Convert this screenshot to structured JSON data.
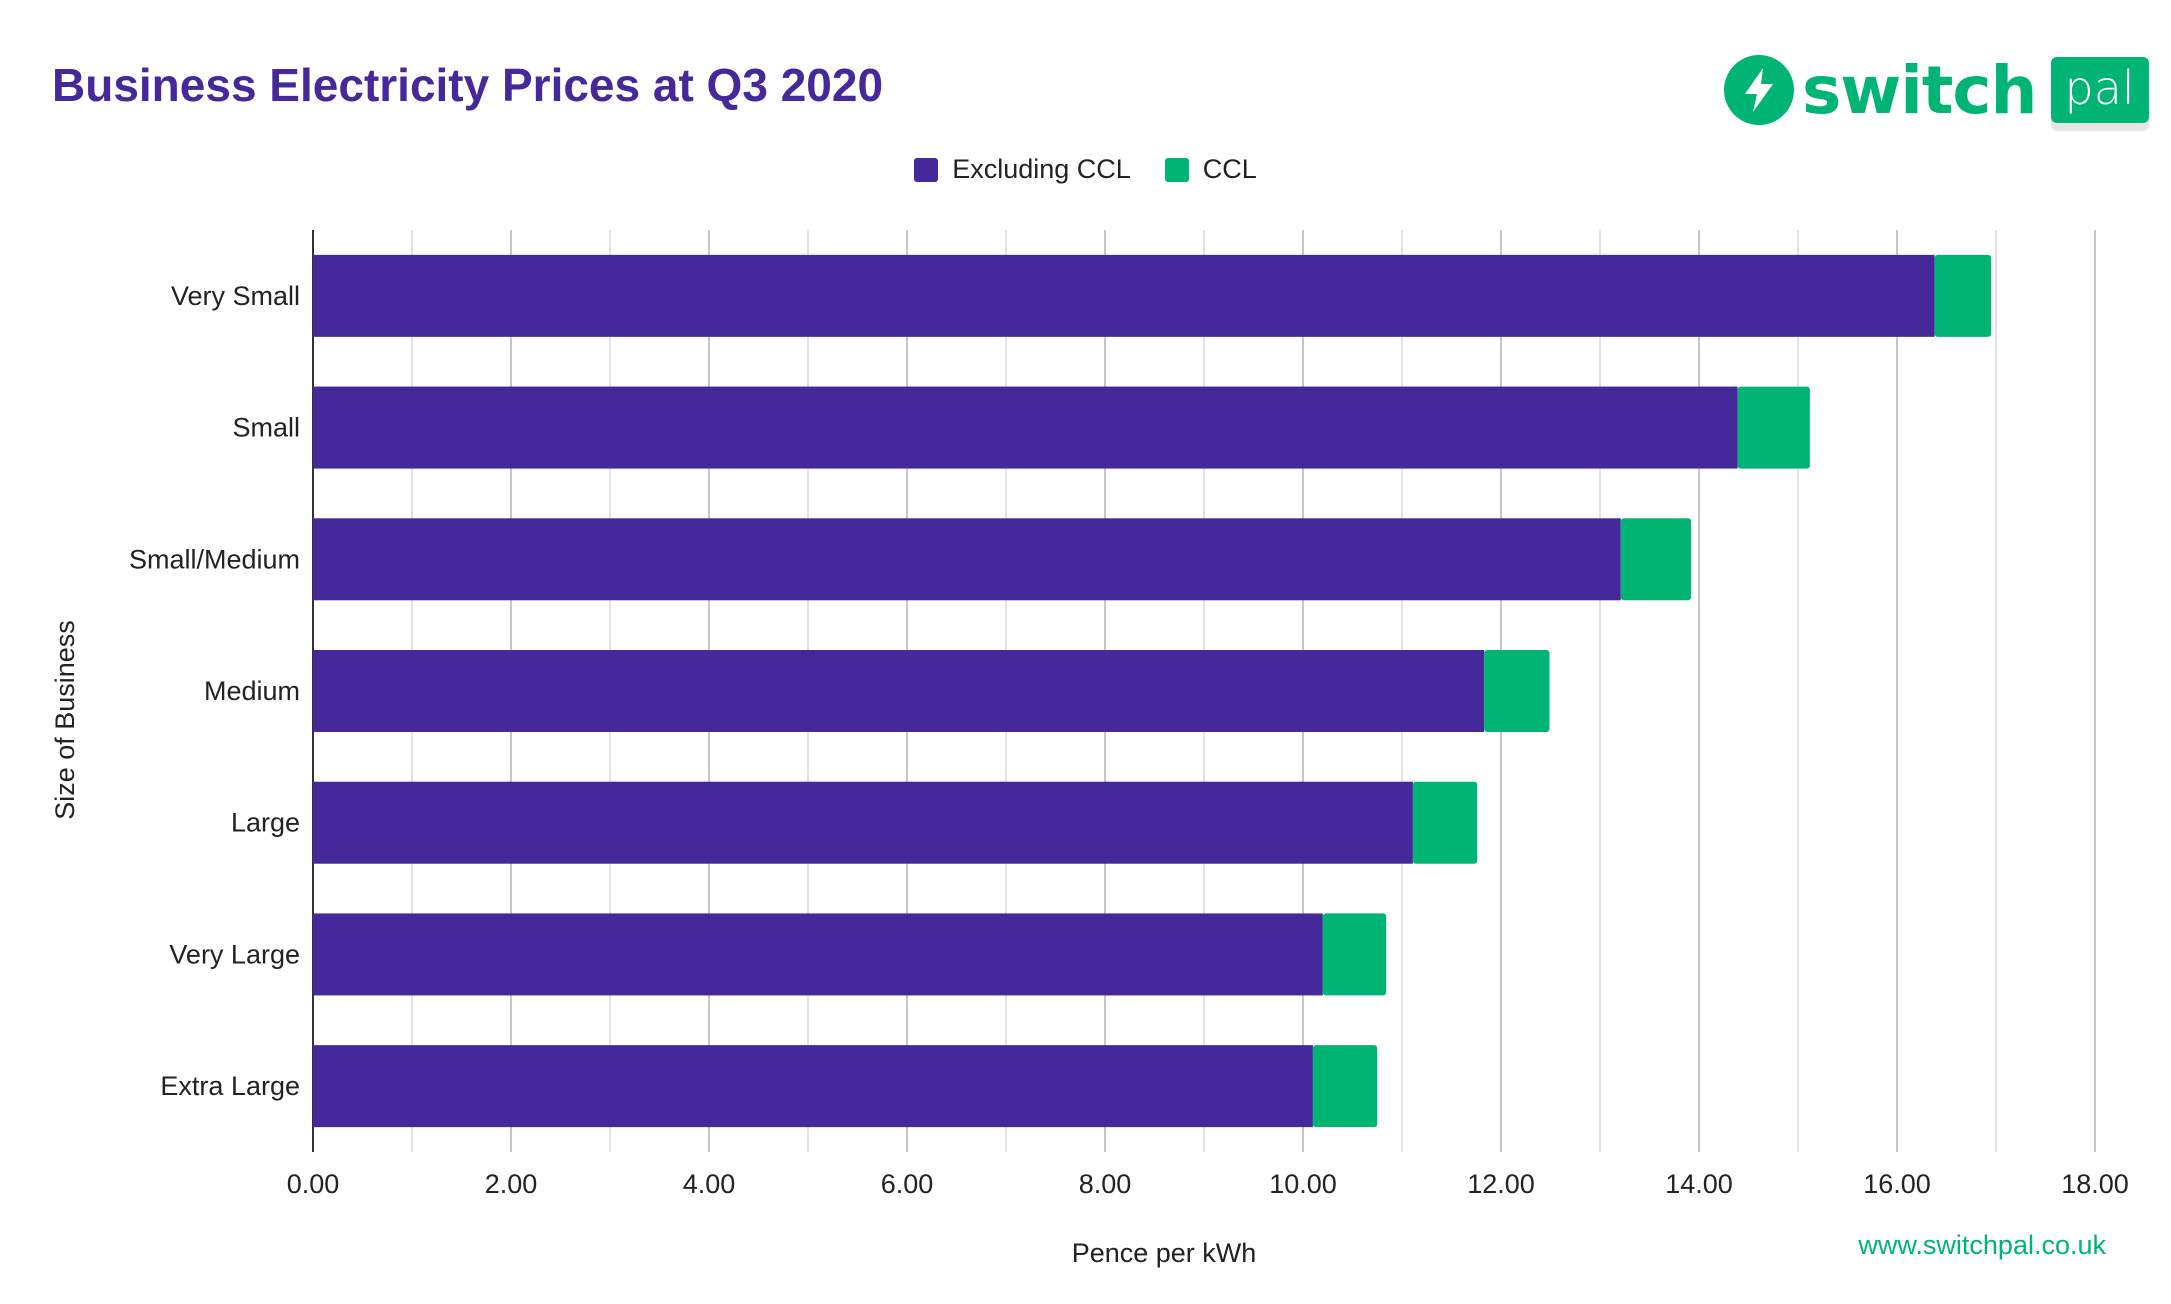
{
  "chart_data": {
    "type": "bar",
    "orientation": "horizontal",
    "stacked": true,
    "title": "Business Electricity Prices at Q3 2020",
    "xlabel": "Pence per kWh",
    "ylabel": "Size of Business",
    "xlim": [
      0,
      18
    ],
    "xticks": [
      "0.00",
      "2.00",
      "4.00",
      "6.00",
      "8.00",
      "10.00",
      "12.00",
      "14.00",
      "16.00",
      "18.00"
    ],
    "grid": true,
    "legend_position": "top",
    "categories": [
      "Very Small",
      "Small",
      "Small/Medium",
      "Medium",
      "Large",
      "Very Large",
      "Extra Large"
    ],
    "series": [
      {
        "name": "Excluding CCL",
        "color": "#45289a",
        "values": [
          16.38,
          14.39,
          13.21,
          11.83,
          11.11,
          10.2,
          10.1
        ]
      },
      {
        "name": "CCL",
        "color": "#00b574",
        "values": [
          0.57,
          0.73,
          0.71,
          0.66,
          0.65,
          0.64,
          0.65
        ]
      }
    ]
  },
  "logo": {
    "text": "switch",
    "badge": "pal",
    "icon": "lightning-bolt-icon"
  },
  "footer": {
    "website": "www.switchpal.co.uk"
  }
}
